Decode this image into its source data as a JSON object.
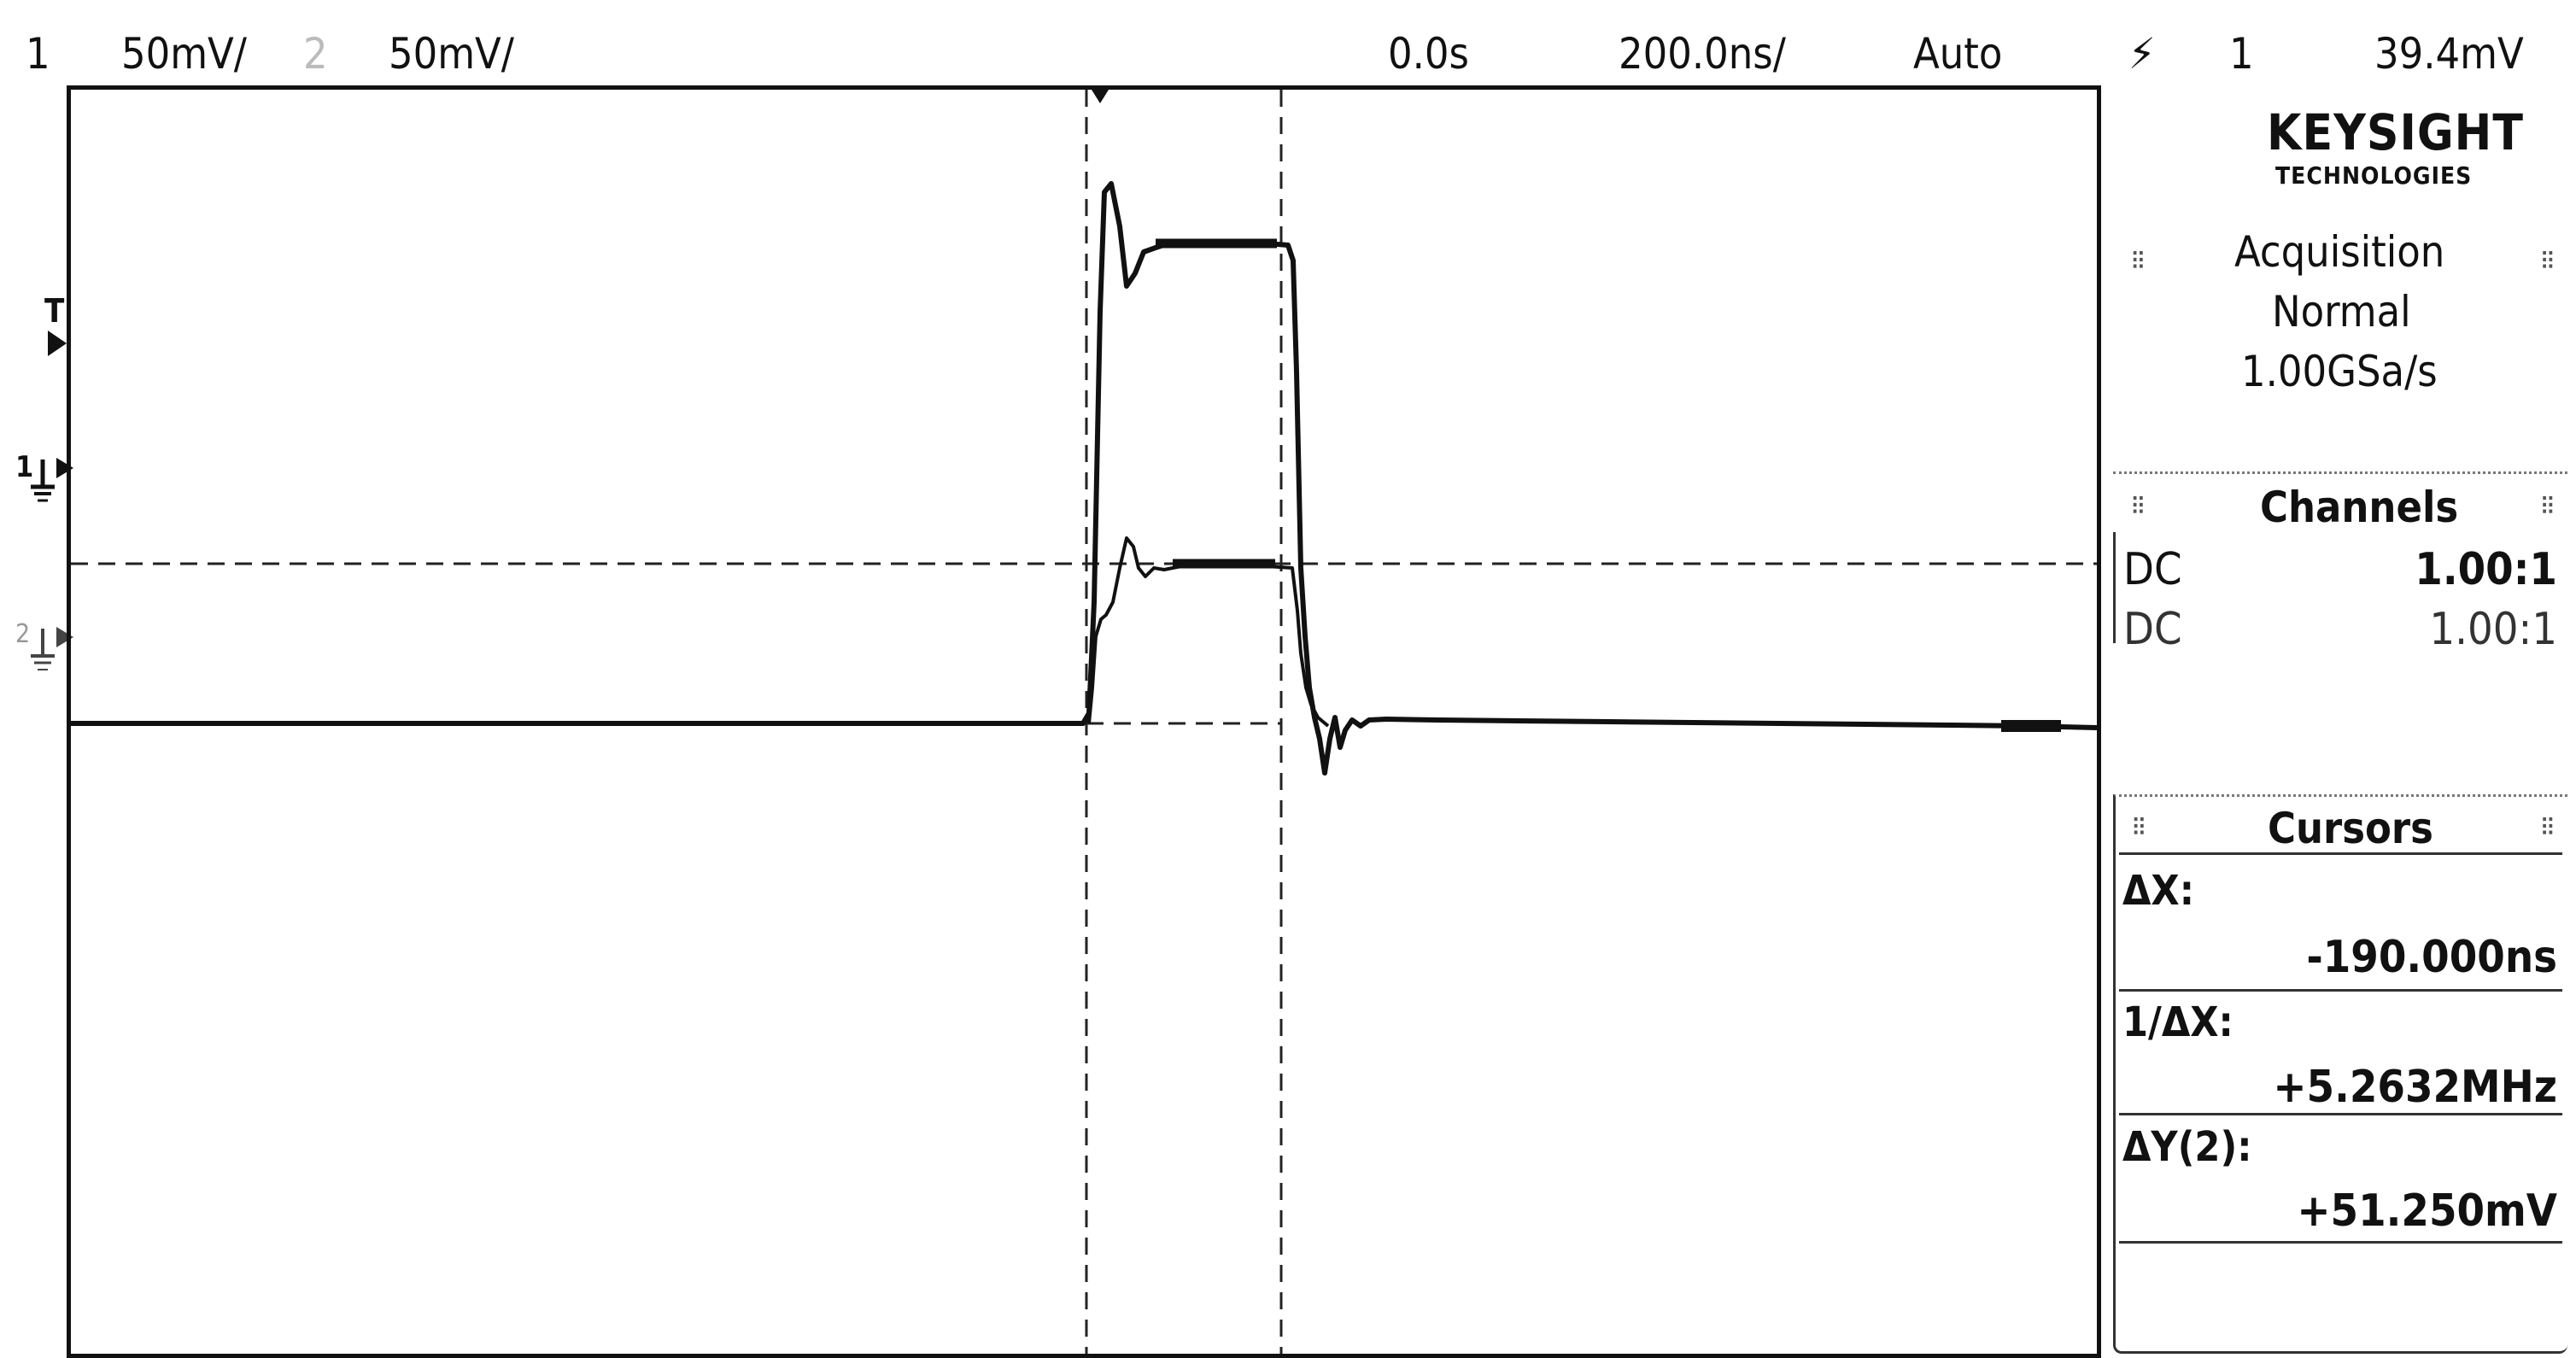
{
  "header": {
    "ch1_num": "1",
    "ch1_scale": "50mV/",
    "ch2_num": "2",
    "ch2_scale": "50mV/",
    "time_delay": "0.0s",
    "time_scale": "200.0ns/",
    "trigger_mode": "Auto",
    "trigger_icon": "trigger-edge-icon",
    "trigger_source": "1",
    "trigger_level": "39.4mV"
  },
  "markers": {
    "trigger": "T",
    "ch1": "1",
    "ch2": "2"
  },
  "brand": {
    "name": "KEYSIGHT",
    "sub": "TECHNOLOGIES"
  },
  "acquisition": {
    "title": "Acquisition",
    "mode": "Normal",
    "rate": "1.00GSa/s"
  },
  "channels": {
    "title": "Channels",
    "rows": [
      {
        "coupling": "DC",
        "probe": "1.00:1"
      },
      {
        "coupling": "DC",
        "probe": "1.00:1"
      }
    ]
  },
  "cursors": {
    "title": "Cursors",
    "dx_label": "ΔX:",
    "dx_value": "-190.000ns",
    "inv_dx_label": "1/ΔX:",
    "inv_dx_value": "+5.2632MHz",
    "dy_label": "ΔY(2):",
    "dy_value": "+51.250mV"
  },
  "colors": {
    "trace": "#111111",
    "background": "#ffffff"
  }
}
